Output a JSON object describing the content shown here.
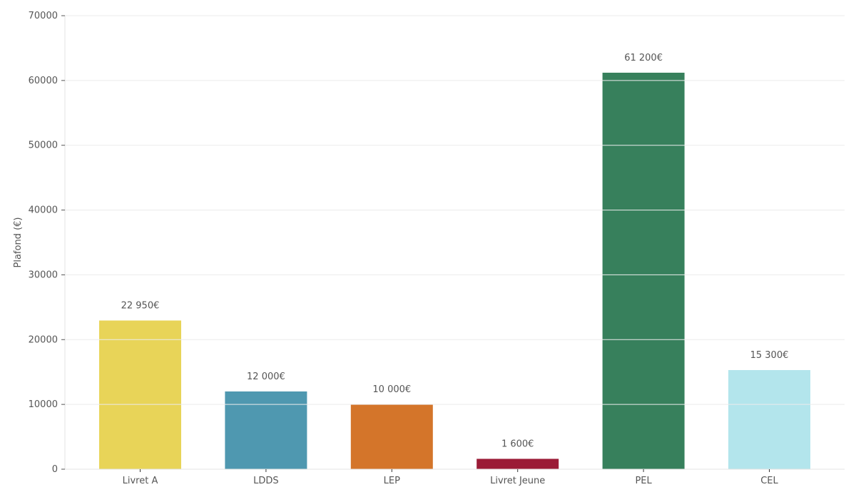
{
  "chart_data": {
    "type": "bar",
    "categories": [
      "Livret A",
      "LDDS",
      "LEP",
      "Livret Jeune",
      "PEL",
      "CEL"
    ],
    "values": [
      22950,
      12000,
      10000,
      1600,
      61200,
      15300
    ],
    "data_labels": [
      "22 950€",
      "12 000€",
      "10 000€",
      "1 600€",
      "61 200€",
      "15 300€"
    ],
    "colors": [
      "#E8D458",
      "#4F98B0",
      "#D4752A",
      "#9B1B36",
      "#37805C",
      "#B3E5EC"
    ],
    "title": "",
    "xlabel": "",
    "ylabel": "Plafond (€)",
    "ylim": [
      0,
      70000
    ],
    "yticks": [
      0,
      10000,
      20000,
      30000,
      40000,
      50000,
      60000,
      70000
    ],
    "grid": true,
    "legend": "none"
  }
}
